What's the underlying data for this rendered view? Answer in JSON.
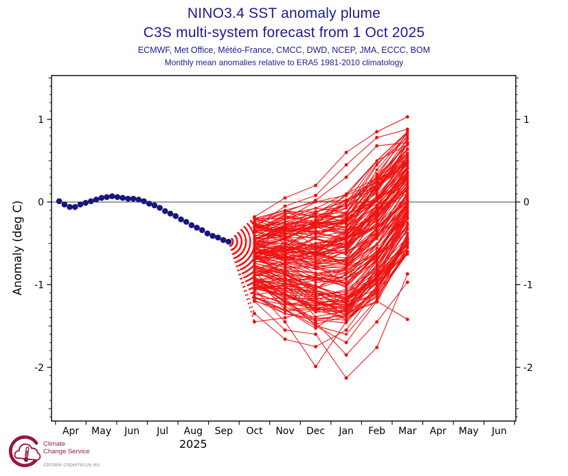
{
  "header": {
    "title": "NINO3.4 SST anomaly plume",
    "subtitle": "C3S multi-system forecast from 1 Oct 2025",
    "systems": "ECMWF, Met Office, Météo-France, CMCC, DWD, NCEP, JMA, ECCC, BOM",
    "note": "Monthly mean anomalies relative to ERA5 1981-2010 climatology"
  },
  "footer": {
    "logo_line1": "Climate",
    "logo_line2": "Change Service",
    "url": "climate.copernicus.eu"
  },
  "colors": {
    "title_navy": "#1b1b8f",
    "observed_navy": "#16167c",
    "forecast_red": "#ee1111",
    "logo_maroon": "#941b3d",
    "logo_url_gray": "#a5929b",
    "zero_line": "#3c3c3c",
    "axis": "#000000"
  },
  "chart_data": {
    "type": "line",
    "title": "NINO3.4 SST anomaly plume",
    "subtitle": "C3S multi-system forecast from 1 Oct 2025",
    "ylabel": "Anomaly (deg C)",
    "xlabel": "",
    "x_tick_labels": [
      "Apr",
      "May",
      "Jun",
      "Jul",
      "Aug",
      "Sep",
      "Oct",
      "Nov",
      "Dec",
      "Jan",
      "Feb",
      "Mar",
      "Apr",
      "May",
      "Jun"
    ],
    "year_label": "2025",
    "year_label_month_index": 4,
    "y_ticks": [
      1,
      0,
      -1,
      -2
    ],
    "y_minor_tick_step": 0.1,
    "ylim": [
      -2.65,
      1.53
    ],
    "xlim_months": [
      -0.63,
      14.54
    ],
    "grid": false,
    "legend": "none",
    "observed": {
      "name": "observed-analysis",
      "marker": "dot",
      "t_start_month": -0.38,
      "t_step_months": 0.173,
      "values": [
        0.01,
        -0.03,
        -0.06,
        -0.06,
        -0.03,
        -0.01,
        0.01,
        0.03,
        0.05,
        0.06,
        0.07,
        0.06,
        0.05,
        0.04,
        0.04,
        0.03,
        0.01,
        -0.02,
        -0.04,
        -0.07,
        -0.11,
        -0.14,
        -0.17,
        -0.21,
        -0.24,
        -0.28,
        -0.31,
        -0.34,
        -0.38,
        -0.41,
        -0.43,
        -0.46,
        -0.48
      ]
    },
    "forecast": {
      "name": "multi-system-ensemble-plume",
      "months": [
        "Oct",
        "Nov",
        "Dec",
        "Jan",
        "Feb",
        "Mar"
      ],
      "t": [
        6,
        7,
        8,
        9,
        10,
        11
      ],
      "anchor_t": 5.156,
      "anchor_value": -0.48,
      "envelope_max": [
        -0.15,
        0.08,
        0.2,
        0.6,
        0.84,
        1.03
      ],
      "envelope_min": [
        -1.45,
        -1.66,
        -1.99,
        -2.13,
        -1.76,
        -1.42
      ],
      "dense_band_max": [
        -0.2,
        -0.1,
        0.0,
        0.1,
        0.5,
        0.85
      ],
      "dense_band_min": [
        -1.2,
        -1.35,
        -1.55,
        -1.6,
        -1.3,
        -0.75
      ],
      "centers": [
        -0.7,
        -0.72,
        -0.78,
        -0.75,
        -0.4,
        0.05
      ],
      "half_spread": [
        0.5,
        0.62,
        0.77,
        0.85,
        0.9,
        0.8
      ],
      "outlier_members": [
        [
          -0.18,
          0.05,
          0.2,
          0.6,
          0.85,
          1.03
        ],
        [
          -0.3,
          -0.05,
          0.08,
          0.45,
          0.78,
          0.88
        ],
        [
          -0.25,
          -0.12,
          0.02,
          0.3,
          0.68,
          0.72
        ],
        [
          -1.05,
          -1.45,
          -1.99,
          -1.45,
          -1.1,
          -0.6
        ],
        [
          -1.2,
          -1.55,
          -1.6,
          -2.13,
          -1.76,
          -0.87
        ],
        [
          -0.9,
          -1.3,
          -1.5,
          -1.7,
          -1.2,
          -1.42
        ],
        [
          -1.0,
          -1.2,
          -1.45,
          -1.85,
          -1.45,
          -0.97
        ],
        [
          -1.35,
          -1.66,
          -1.75,
          -1.55,
          -1.05,
          -0.5
        ],
        [
          -1.45,
          -1.4,
          -1.3,
          -1.2,
          -0.9,
          -0.45
        ]
      ],
      "generated_members": 164,
      "n_members_total": 173
    }
  }
}
